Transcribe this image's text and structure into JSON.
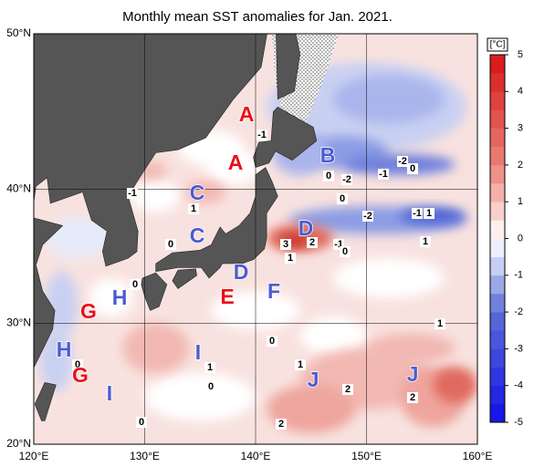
{
  "map": {
    "title": "Monthly mean SST anomalies for Jan. 2021.",
    "lat_ticks": [
      {
        "value": 50,
        "label": "50°N"
      },
      {
        "value": 40,
        "label": "40°N"
      },
      {
        "value": 30,
        "label": "30°N"
      },
      {
        "value": 20,
        "label": "20°N"
      }
    ],
    "lon_ticks": [
      {
        "value": 120,
        "label": "120°E"
      },
      {
        "value": 130,
        "label": "130°E"
      },
      {
        "value": 140,
        "label": "140°E"
      },
      {
        "value": 150,
        "label": "150°E"
      },
      {
        "value": 160,
        "label": "160°E"
      }
    ],
    "colorbar": {
      "unit": "[°C]",
      "range": [
        -5,
        5
      ],
      "ticks": [
        5,
        4,
        3,
        2,
        1,
        0,
        -1,
        -2,
        -3,
        -4,
        -5
      ]
    },
    "regions": [
      {
        "label": "A",
        "color": "#e8101a"
      },
      {
        "label": "A",
        "color": "#e8101a"
      },
      {
        "label": "B",
        "color": "#4a5bd0"
      },
      {
        "label": "C",
        "color": "#4a5bd0"
      },
      {
        "label": "C",
        "color": "#4a5bd0"
      },
      {
        "label": "D",
        "color": "#4a5bd0"
      },
      {
        "label": "D",
        "color": "#4a5bd0"
      },
      {
        "label": "E",
        "color": "#e8101a"
      },
      {
        "label": "F",
        "color": "#4a5bd0"
      },
      {
        "label": "G",
        "color": "#e8101a"
      },
      {
        "label": "G",
        "color": "#e8101a"
      },
      {
        "label": "H",
        "color": "#4a5bd0"
      },
      {
        "label": "H",
        "color": "#4a5bd0"
      },
      {
        "label": "I",
        "color": "#4a5bd0"
      },
      {
        "label": "I",
        "color": "#4a5bd0"
      },
      {
        "label": "J",
        "color": "#4a5bd0"
      },
      {
        "label": "J",
        "color": "#4a5bd0"
      }
    ],
    "contour_labels": [
      "-1",
      "0",
      "-2",
      "-1",
      "-2",
      "0",
      "-1",
      "1",
      "0",
      "-2",
      "-1",
      "1",
      "0",
      "3",
      "2",
      "-1",
      "0",
      "1",
      "1",
      "0",
      "1",
      "0",
      "0",
      "1",
      "1",
      "0",
      "2",
      "2",
      "0",
      "2"
    ]
  }
}
